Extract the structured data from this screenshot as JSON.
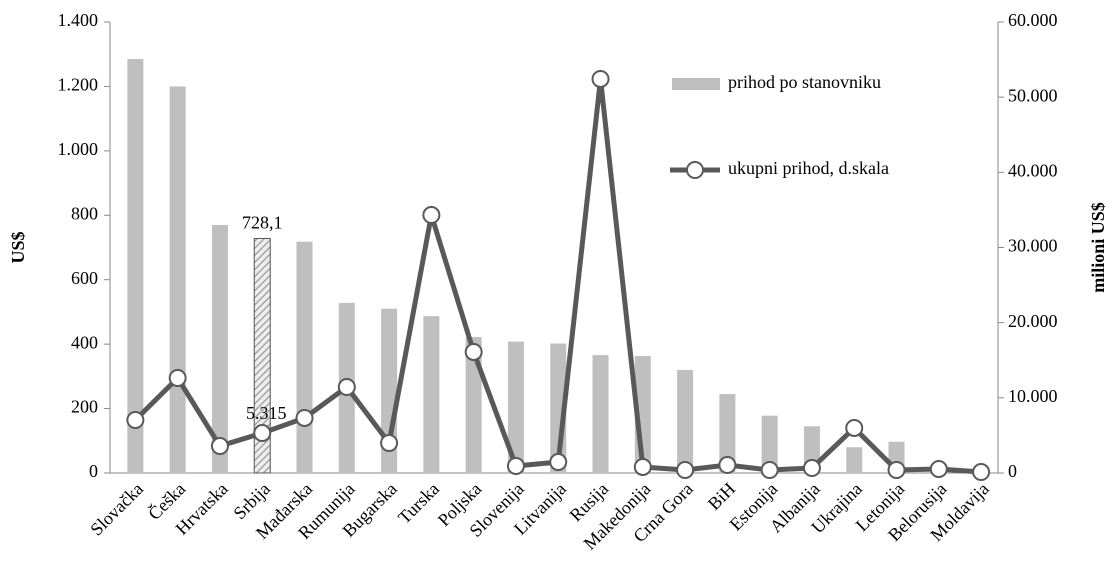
{
  "chart_data": {
    "type": "bar-line",
    "categories": [
      "Slovačka",
      "Češka",
      "Hrvatska",
      "Srbija",
      "Mađarska",
      "Rumunija",
      "Bugarska",
      "Turska",
      "Poljska",
      "Slovenija",
      "Litvanija",
      "Rusija",
      "Makedonija",
      "Crna Gora",
      "BiH",
      "Estonija",
      "Albanija",
      "Ukrajina",
      "Letonija",
      "Belorusija",
      "Moldavija"
    ],
    "series": [
      {
        "name": "prihod po stanovniku",
        "type": "bar",
        "color": "#bfbfbf",
        "hatched_category": "Srbija",
        "values": [
          1285,
          1200,
          770,
          728.1,
          718,
          528,
          510,
          487,
          422,
          408,
          402,
          366,
          363,
          320,
          245,
          178,
          145,
          80,
          97,
          10,
          5
        ],
        "value_labels": [
          null,
          null,
          null,
          "728,1",
          null,
          null,
          null,
          null,
          null,
          null,
          null,
          null,
          null,
          null,
          null,
          null,
          null,
          null,
          null,
          null,
          null
        ]
      },
      {
        "name": "ukupni prihod, d.skala",
        "type": "line",
        "axis": "y2",
        "color": "#595959",
        "values": [
          7050,
          12640,
          3590,
          5315,
          7320,
          11440,
          3990,
          34320,
          16100,
          930,
          1460,
          52420,
          800,
          400,
          1060,
          400,
          660,
          5990,
          400,
          530,
          130
        ],
        "value_labels": [
          null,
          null,
          null,
          "5.315",
          null,
          null,
          null,
          null,
          null,
          null,
          null,
          null,
          null,
          null,
          null,
          null,
          null,
          null,
          null,
          null,
          null
        ]
      }
    ],
    "ylabel": "US$",
    "y2label": "milioni US$",
    "ylim": [
      0,
      1400
    ],
    "yticks": [
      0,
      200,
      400,
      600,
      800,
      {
        "value": 1000,
        "label": "1.000"
      },
      {
        "value": 1200,
        "label": "1.200"
      },
      {
        "value": 1400,
        "label": "1.400"
      }
    ],
    "y2lim": [
      0,
      60000
    ],
    "y2ticks": [
      0,
      {
        "value": 10000,
        "label": "10.000"
      },
      {
        "value": 20000,
        "label": "20.000"
      },
      {
        "value": 30000,
        "label": "30.000"
      },
      {
        "value": 40000,
        "label": "40.000"
      },
      {
        "value": 50000,
        "label": "50.000"
      },
      {
        "value": 60000,
        "label": "60.000"
      }
    ]
  }
}
